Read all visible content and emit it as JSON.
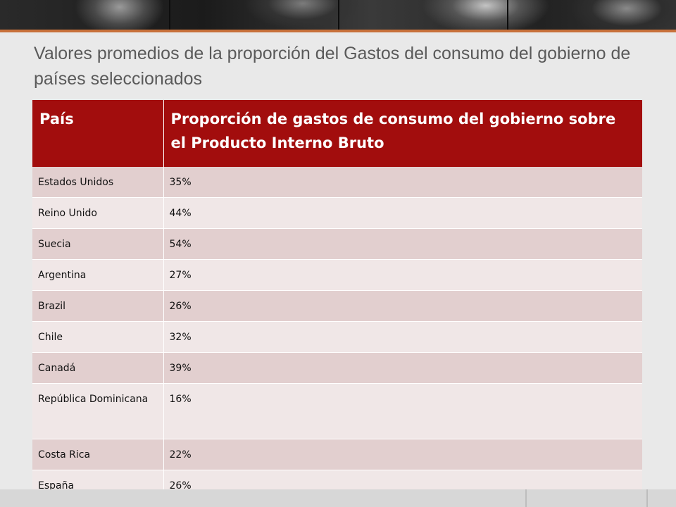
{
  "slide": {
    "title": "Valores promedios de la proporción del Gastos del consumo del gobierno de países seleccionados"
  },
  "table": {
    "headers": [
      "País",
      "Proporción de gastos de consumo del gobierno sobre el Producto Interno Bruto"
    ],
    "rows": [
      {
        "country": "Estados Unidos",
        "share": "35%"
      },
      {
        "country": "Reino Unido",
        "share": "44%"
      },
      {
        "country": "Suecia",
        "share": "54%"
      },
      {
        "country": "Argentina",
        "share": "27%"
      },
      {
        "country": "Brazil",
        "share": "26%"
      },
      {
        "country": "Chile",
        "share": "32%"
      },
      {
        "country": "Canadá",
        "share": "39%"
      },
      {
        "country": "República Dominicana",
        "share": "16%"
      },
      {
        "country": "Costa Rica",
        "share": "22%"
      },
      {
        "country": "España",
        "share": "26%"
      }
    ]
  },
  "colors": {
    "header_bg": "#a20d0d",
    "row_odd": "#e2cfcf",
    "row_even": "#f0e7e7",
    "accent": "#c8713b"
  }
}
